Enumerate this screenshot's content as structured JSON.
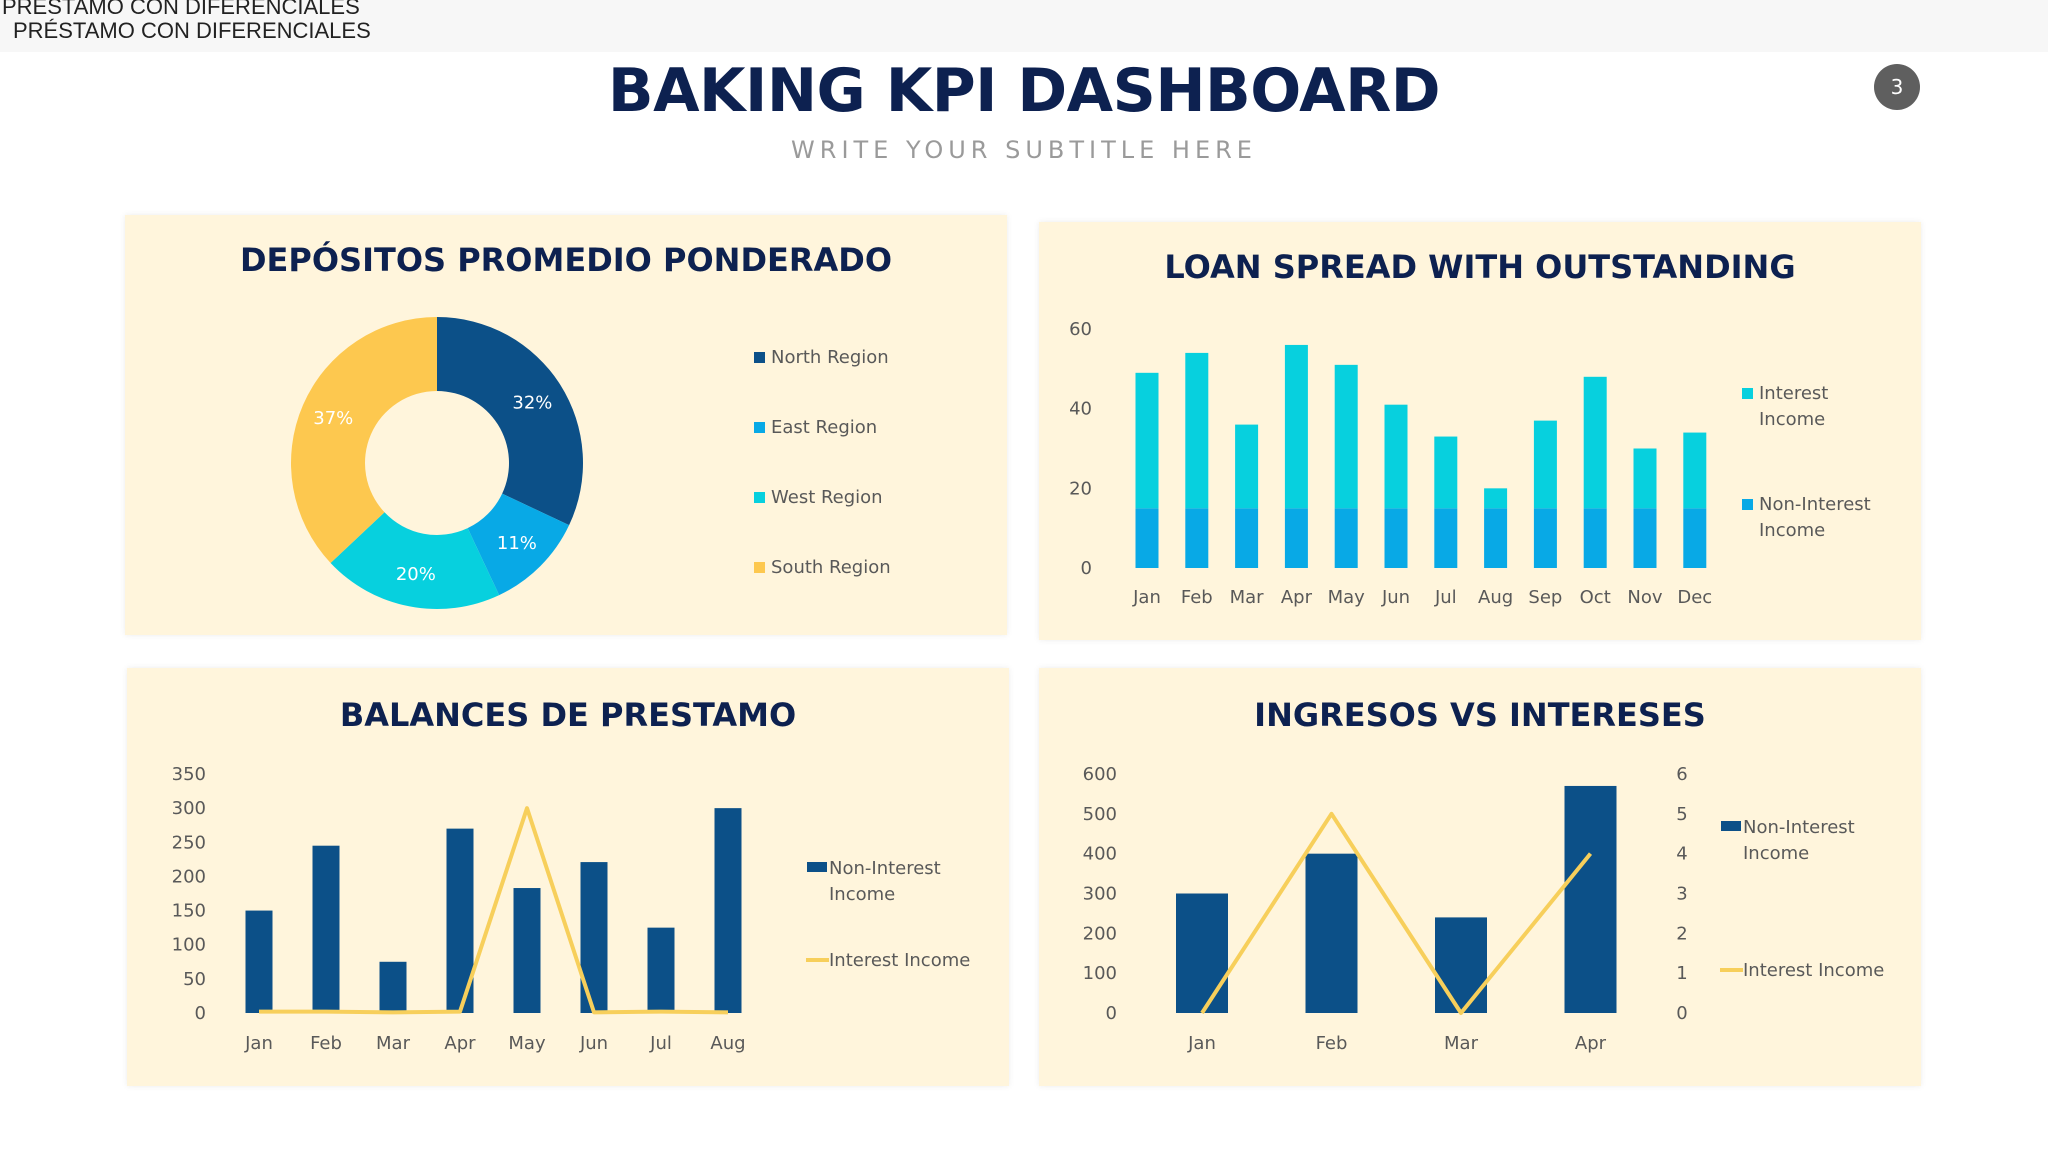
{
  "header": {
    "tab_text": "PRÉSTAMO CON DIFERENCIALES",
    "tab_text_overlap": "PRÉSTAMO CON DIFERENCIALES",
    "title": "BAKING KPI DASHBOARD",
    "subtitle": "WRITE YOUR SUBTITLE HERE",
    "page_number": "3"
  },
  "colors": {
    "dark_blue": "#0c5088",
    "mid_blue": "#08a9e6",
    "cyan": "#07d0de",
    "yellow": "#fdc84f",
    "line_yellow": "#f7cf5b",
    "navy": "#0d2150",
    "panel_bg": "#fff5dc"
  },
  "chart_data": [
    {
      "type": "pie",
      "title": "DEPÓSITOS PROMEDIO PONDERADO",
      "donut": true,
      "categories": [
        "North Region",
        "East Region",
        "West Region",
        "South Region"
      ],
      "values": [
        32,
        11,
        20,
        37
      ],
      "labels": [
        "32%",
        "11%",
        "20%",
        "37%"
      ],
      "colors": [
        "#0c5088",
        "#08a9e6",
        "#07d0de",
        "#fdc84f"
      ],
      "legend": "right"
    },
    {
      "type": "bar",
      "title": "LOAN SPREAD WITH OUTSTANDING",
      "stacked": true,
      "categories": [
        "Jan",
        "Feb",
        "Mar",
        "Apr",
        "May",
        "Jun",
        "Jul",
        "Aug",
        "Sep",
        "Oct",
        "Nov",
        "Dec"
      ],
      "series": [
        {
          "name": "Non-Interest Income",
          "values": [
            15,
            15,
            15,
            15,
            15,
            15,
            15,
            15,
            15,
            15,
            15,
            15
          ],
          "color": "#08a9e6"
        },
        {
          "name": "Interest Income",
          "values": [
            34,
            39,
            21,
            41,
            36,
            26,
            18,
            5,
            22,
            33,
            15,
            19
          ],
          "color": "#07d0de"
        }
      ],
      "legend_lines": [
        [
          "Interest",
          "Income"
        ],
        [
          "Non-Interest",
          "Income"
        ]
      ],
      "ylim": [
        0,
        60
      ],
      "yticks": [
        0,
        20,
        40,
        60
      ],
      "legend": "right"
    },
    {
      "type": "bar",
      "title": "BALANCES DE PRESTAMO",
      "categories": [
        "Jan",
        "Feb",
        "Mar",
        "Apr",
        "May",
        "Jun",
        "Jul",
        "Aug"
      ],
      "series": [
        {
          "name": "Non-Interest Income",
          "kind": "bar",
          "values": [
            150,
            245,
            75,
            270,
            183,
            221,
            125,
            300
          ],
          "color": "#0c5088"
        },
        {
          "name": "Interest Income",
          "kind": "line",
          "values": [
            2,
            2,
            1,
            2,
            300,
            1,
            2,
            1
          ],
          "color": "#f7cf5b"
        }
      ],
      "legend_lines": [
        [
          "Non-Interest",
          "Income"
        ],
        [
          "Interest Income"
        ]
      ],
      "ylim": [
        0,
        350
      ],
      "yticks": [
        0,
        50,
        100,
        150,
        200,
        250,
        300,
        350
      ],
      "legend": "right"
    },
    {
      "type": "bar",
      "title": "INGRESOS VS INTERESES",
      "categories": [
        "Jan",
        "Feb",
        "Mar",
        "Apr"
      ],
      "series": [
        {
          "name": "Non-Interest Income",
          "kind": "bar",
          "axis": "left",
          "values": [
            300,
            400,
            240,
            570
          ],
          "color": "#0c5088"
        },
        {
          "name": "Interest Income",
          "kind": "line",
          "axis": "right",
          "values": [
            0,
            5,
            0,
            4
          ],
          "color": "#f7cf5b"
        }
      ],
      "legend_lines": [
        [
          "Non-Interest",
          "Income"
        ],
        [
          "Interest Income"
        ]
      ],
      "ylim": [
        0,
        600
      ],
      "yticks": [
        0,
        100,
        200,
        300,
        400,
        500,
        600
      ],
      "y2lim": [
        0,
        6
      ],
      "y2ticks": [
        0,
        1,
        2,
        3,
        4,
        5,
        6
      ],
      "legend": "right"
    }
  ]
}
